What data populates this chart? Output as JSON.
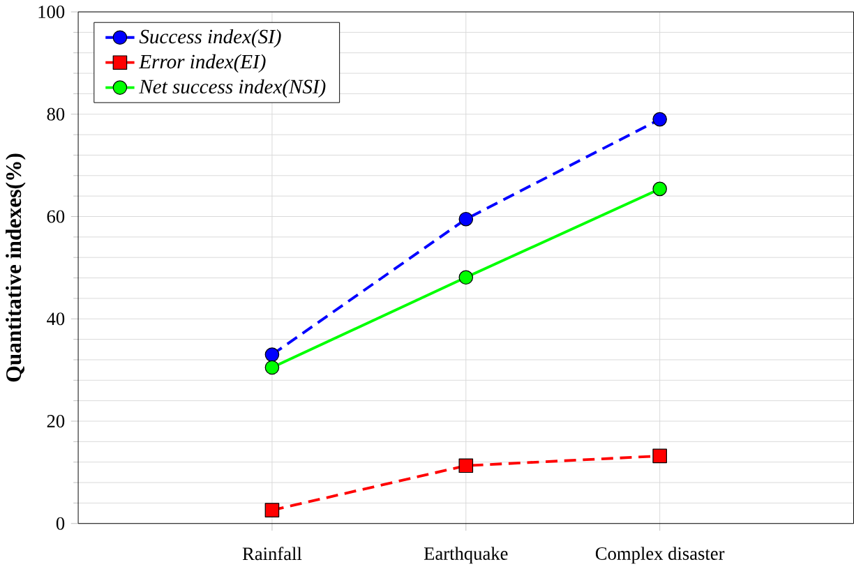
{
  "chart_data": {
    "type": "line",
    "ylabel": "Quantitative indexes(%)",
    "categories": [
      "Rainfall",
      "Earthquake",
      "Complex disaster"
    ],
    "series": [
      {
        "name": "*Success index(SI)*",
        "color": "#0000ff",
        "values": [
          33,
          59.5,
          79
        ],
        "marker": "circle",
        "line_style": "dashed"
      },
      {
        "name": "*Error index(EI)*",
        "color": "#ff0000",
        "values": [
          2.6,
          11.3,
          13.2
        ],
        "marker": "square",
        "line_style": "dashed"
      },
      {
        "name": "*Net success index(NSI)*",
        "color": "#00ff00",
        "values": [
          30.5,
          48.1,
          65.4
        ],
        "marker": "circle",
        "line_style": "solid"
      }
    ],
    "ylim": [
      0,
      100
    ],
    "yticks": [
      0,
      20,
      40,
      60,
      80,
      100
    ],
    "grid": true,
    "legend": "top left"
  }
}
